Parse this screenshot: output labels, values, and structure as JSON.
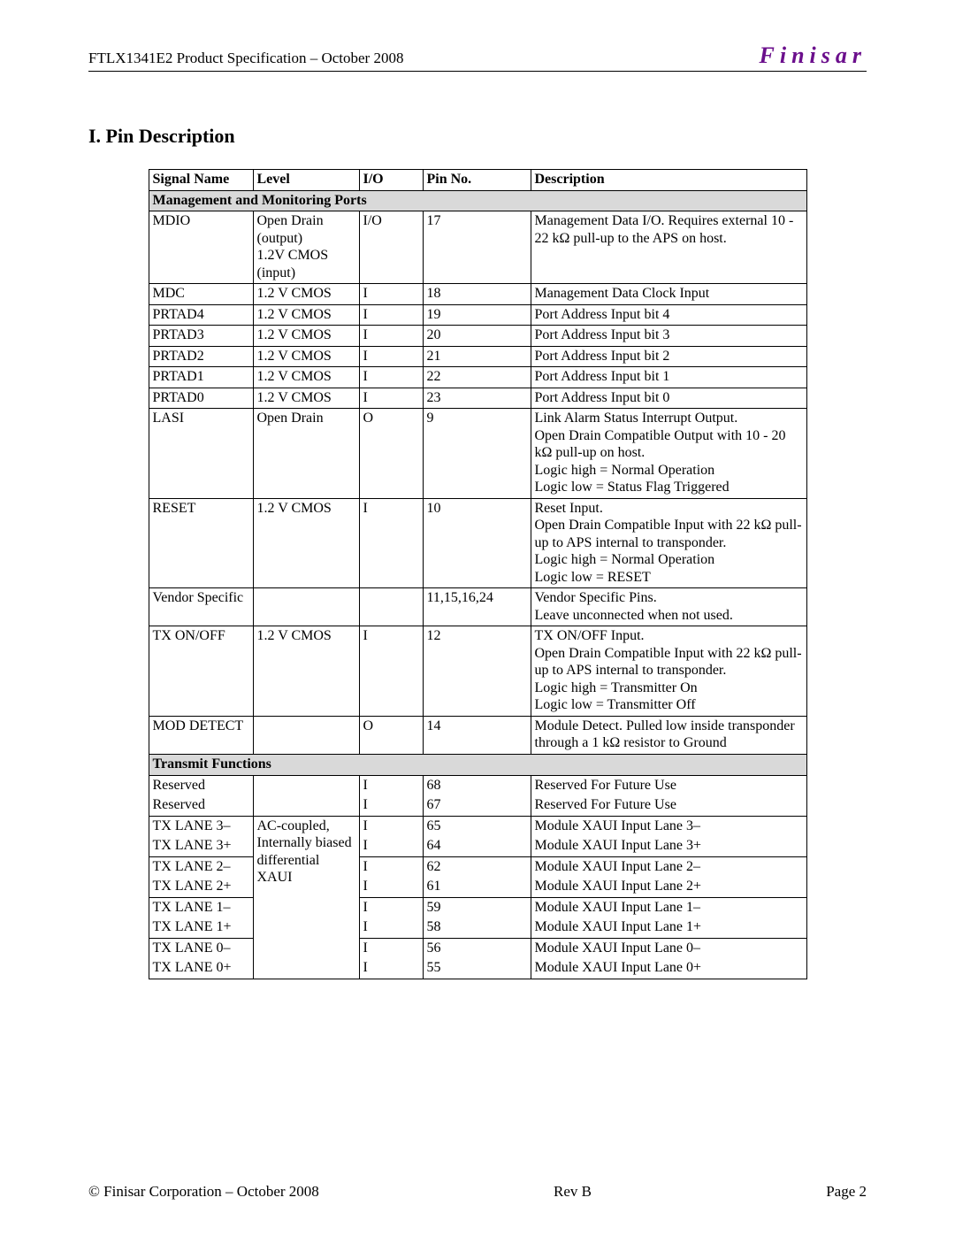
{
  "header": {
    "left": "FTLX1341E2 Product Specification – October 2008",
    "brand": "Finisar"
  },
  "section_title": "I.   Pin Description",
  "table": {
    "columns": [
      "Signal Name",
      "Level",
      "I/O",
      "Pin No.",
      "Description"
    ],
    "section1_label": "Management and Monitoring Ports",
    "section2_label": "Transmit Functions",
    "mgmt_rows": [
      {
        "signal": "MDIO",
        "level": "Open Drain (output)\n1.2V CMOS (input)",
        "io": "I/O",
        "pin": "17",
        "desc": "Management Data I/O. Requires external 10 - 22 kΩ pull-up to the APS on host."
      },
      {
        "signal": "MDC",
        "level": "1.2 V CMOS",
        "io": "I",
        "pin": "18",
        "desc": "Management Data Clock Input"
      },
      {
        "signal": "PRTAD4",
        "level": "1.2 V CMOS",
        "io": "I",
        "pin": "19",
        "desc": "Port Address Input bit 4"
      },
      {
        "signal": "PRTAD3",
        "level": "1.2 V CMOS",
        "io": "I",
        "pin": "20",
        "desc": "Port Address Input bit 3"
      },
      {
        "signal": "PRTAD2",
        "level": "1.2 V CMOS",
        "io": "I",
        "pin": "21",
        "desc": "Port Address Input bit 2"
      },
      {
        "signal": "PRTAD1",
        "level": "1.2 V CMOS",
        "io": "I",
        "pin": "22",
        "desc": "Port Address Input bit 1"
      },
      {
        "signal": "PRTAD0",
        "level": "1.2 V CMOS",
        "io": "I",
        "pin": "23",
        "desc": "Port Address Input bit 0"
      },
      {
        "signal": "LASI",
        "level": "Open Drain",
        "io": "O",
        "pin": "9",
        "desc": "Link Alarm Status Interrupt Output.\nOpen Drain Compatible Output with 10 - 20 kΩ pull-up on host.\nLogic high = Normal Operation\nLogic low = Status Flag Triggered"
      },
      {
        "signal": "RESET",
        "level": "1.2 V CMOS",
        "io": "I",
        "pin": "10",
        "desc": "Reset Input.\nOpen Drain Compatible Input with 22 kΩ pull-up to APS internal to transponder.\nLogic high = Normal Operation\nLogic low = RESET"
      },
      {
        "signal": "Vendor Specific",
        "level": "",
        "io": "",
        "pin": "11,15,16,24",
        "desc": "Vendor Specific Pins.\nLeave unconnected when not used."
      },
      {
        "signal": "TX ON/OFF",
        "level": "1.2 V CMOS",
        "io": "I",
        "pin": "12",
        "desc": "TX ON/OFF Input.\nOpen Drain Compatible Input with 22 kΩ pull-up to APS internal to transponder.\nLogic high = Transmitter On\nLogic low = Transmitter Off"
      },
      {
        "signal": "MOD DETECT",
        "level": "",
        "io": "O",
        "pin": "14",
        "desc": "Module Detect. Pulled low inside transponder through a 1 kΩ resistor to Ground"
      }
    ],
    "tx_level_shared": "AC-coupled, Internally biased differential XAUI",
    "tx_reserved": [
      {
        "signal": "Reserved",
        "io": "I",
        "pin": "68",
        "desc": "Reserved For Future Use"
      },
      {
        "signal": "Reserved",
        "io": "I",
        "pin": "67",
        "desc": "Reserved For Future Use"
      }
    ],
    "tx_lanes": [
      {
        "signal": "TX LANE 3–",
        "io": "I",
        "pin": "65",
        "desc": "Module XAUI Input Lane 3–"
      },
      {
        "signal": "TX LANE 3+",
        "io": "I",
        "pin": "64",
        "desc": "Module XAUI Input Lane 3+"
      },
      {
        "signal": "TX LANE 2–",
        "io": "I",
        "pin": "62",
        "desc": "Module XAUI Input Lane 2–"
      },
      {
        "signal": "TX LANE 2+",
        "io": "I",
        "pin": "61",
        "desc": "Module XAUI Input Lane 2+"
      },
      {
        "signal": "TX LANE 1–",
        "io": "I",
        "pin": "59",
        "desc": "Module XAUI Input Lane 1–"
      },
      {
        "signal": "TX LANE 1+",
        "io": "I",
        "pin": "58",
        "desc": "Module XAUI Input Lane 1+"
      },
      {
        "signal": "TX LANE 0–",
        "io": "I",
        "pin": "56",
        "desc": "Module XAUI Input Lane 0–"
      },
      {
        "signal": "TX LANE 0+",
        "io": "I",
        "pin": "55",
        "desc": "Module XAUI Input Lane 0+"
      }
    ]
  },
  "footer": {
    "left": "© Finisar Corporation – October 2008",
    "center": "Rev B",
    "right": "Page 2"
  },
  "colors": {
    "section_bg": "#d9d9d9",
    "brand_color": "#6b0f8c",
    "text": "#000000",
    "background": "#ffffff"
  }
}
